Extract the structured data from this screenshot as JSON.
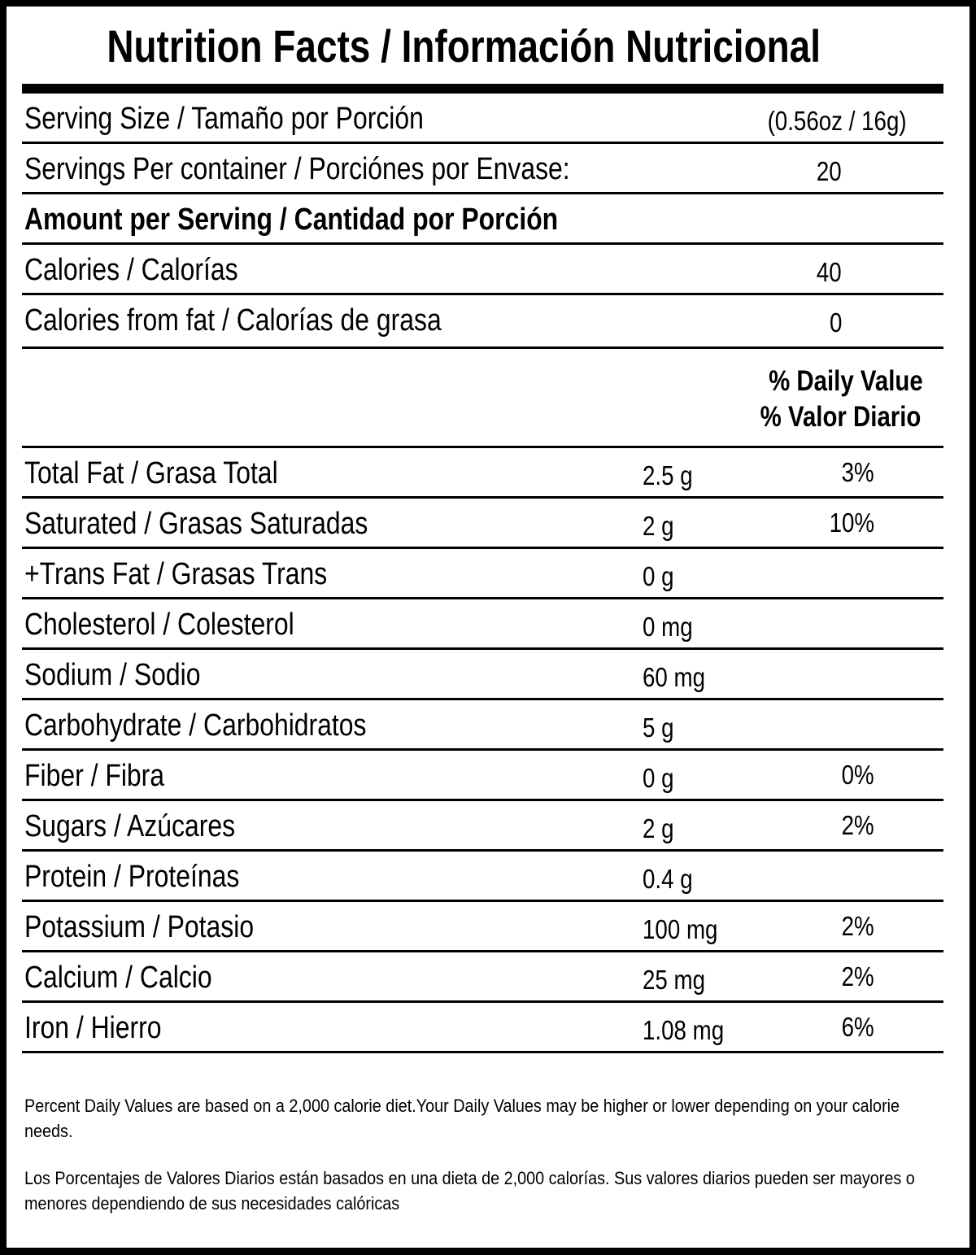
{
  "title": "Nutrition Facts / Información Nutricional",
  "serving": [
    {
      "label": "Serving Size / Tamaño por Porción",
      "value": "(0.56oz / 16g)"
    },
    {
      "label": "Servings Per container / Porciónes por Envase:",
      "value": "20"
    }
  ],
  "amount_header": "Amount per Serving / Cantidad por Porción",
  "calories": [
    {
      "label": "Calories / Calorías",
      "value": "40"
    },
    {
      "label": "Calories from fat / Calorías de grasa",
      "value": "0"
    }
  ],
  "dv_header": {
    "line1": "% Daily Value",
    "line2": "% Valor Diario"
  },
  "nutrients": [
    {
      "label": "Total Fat / Grasa Total",
      "amount": "2.5 g",
      "dv": "3%"
    },
    {
      "label": "Saturated / Grasas Saturadas",
      "amount": "2 g",
      "dv": "10%"
    },
    {
      "label": "+Trans Fat / Grasas Trans",
      "amount": "0 g",
      "dv": ""
    },
    {
      "label": "Cholesterol / Colesterol",
      "amount": "0 mg",
      "dv": ""
    },
    {
      "label": "Sodium / Sodio",
      "amount": "60 mg",
      "dv": ""
    },
    {
      "label": "Carbohydrate / Carbohidratos",
      "amount": "5 g",
      "dv": ""
    },
    {
      "label": "Fiber / Fibra",
      "amount": "0 g",
      "dv": "0%"
    },
    {
      "label": "Sugars / Azúcares",
      "amount": "2 g",
      "dv": "2%"
    },
    {
      "label": "Protein / Proteínas",
      "amount": "0.4 g",
      "dv": ""
    },
    {
      "label": "Potassium / Potasio",
      "amount": "100 mg",
      "dv": "2%"
    },
    {
      "label": "Calcium / Calcio",
      "amount": "25 mg",
      "dv": "2%"
    },
    {
      "label": "Iron / Hierro",
      "amount": "1.08 mg",
      "dv": "6%"
    }
  ],
  "footnotes": {
    "english": "Percent Daily Values are based on a 2,000 calorie diet.Your Daily Values may be higher or lower depending on your calorie needs.",
    "spanish": "Los Porcentajes de Valores Diarios están basados en una dieta de 2,000 calorías. Sus valores diarios pueden ser mayores o menores dependiendo de sus necesidades calóricas"
  }
}
